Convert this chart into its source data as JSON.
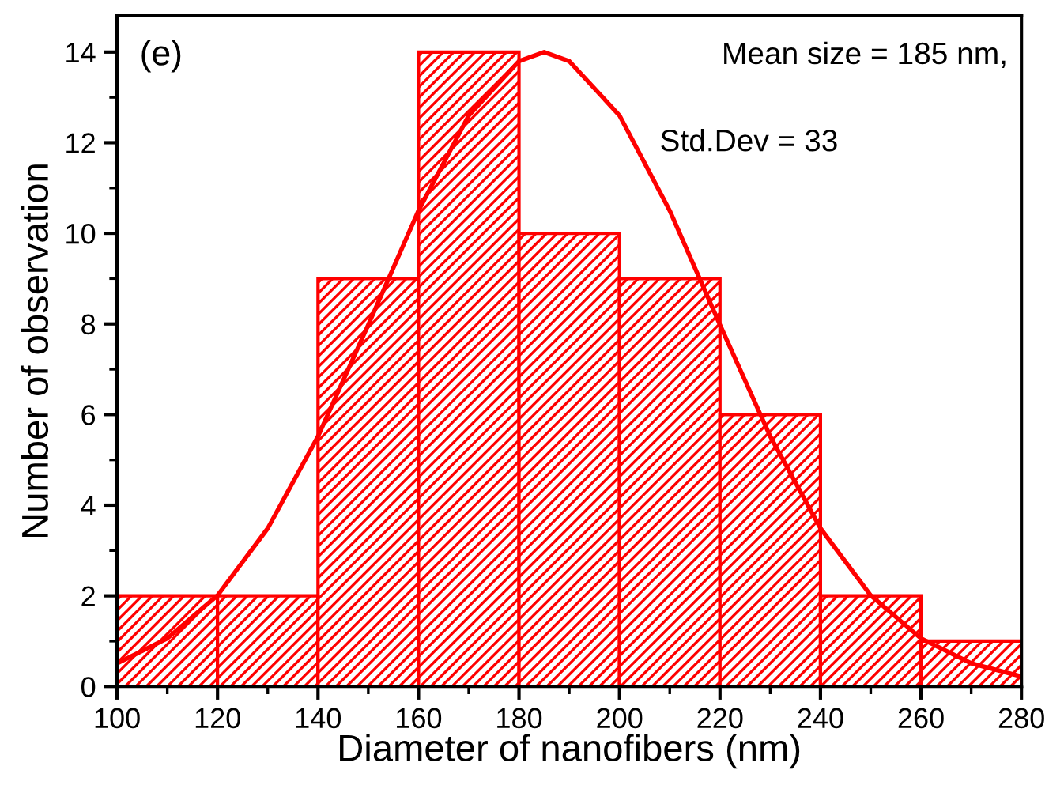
{
  "chart_data": {
    "type": "histogram",
    "xlabel": "Diameter of nanofibers (nm)",
    "ylabel": "Number of observation",
    "bins": [
      100,
      120,
      140,
      160,
      180,
      200,
      220,
      240,
      260,
      280
    ],
    "values": [
      2,
      2,
      9,
      14,
      10,
      9,
      6,
      2,
      1
    ],
    "color": "#ff0000",
    "series": [
      {
        "type": "line",
        "color": "#ff0000",
        "x": [
          100,
          110,
          120,
          130,
          140,
          150,
          160,
          170,
          180,
          185,
          190,
          200,
          210,
          220,
          230,
          240,
          250,
          260,
          270,
          280
        ],
        "values": [
          0.51,
          1.06,
          2.01,
          3.49,
          5.52,
          7.98,
          10.5,
          12.6,
          13.8,
          14,
          13.8,
          12.6,
          10.5,
          7.98,
          5.52,
          3.49,
          2.01,
          1.06,
          0.51,
          0.22
        ]
      }
    ],
    "annotations": [
      "(e)",
      "Mean size = 185 nm,",
      "Std.Dev = 33"
    ],
    "xlim": [
      100,
      280
    ],
    "xticks": [
      100,
      120,
      140,
      160,
      180,
      200,
      220,
      240,
      260,
      280
    ],
    "ylim": [
      0,
      14.8
    ],
    "yticks": [
      0,
      2,
      4,
      6,
      8,
      10,
      12,
      14
    ],
    "grid": false,
    "legend": false,
    "marker": "none",
    "line_style": "solid"
  }
}
